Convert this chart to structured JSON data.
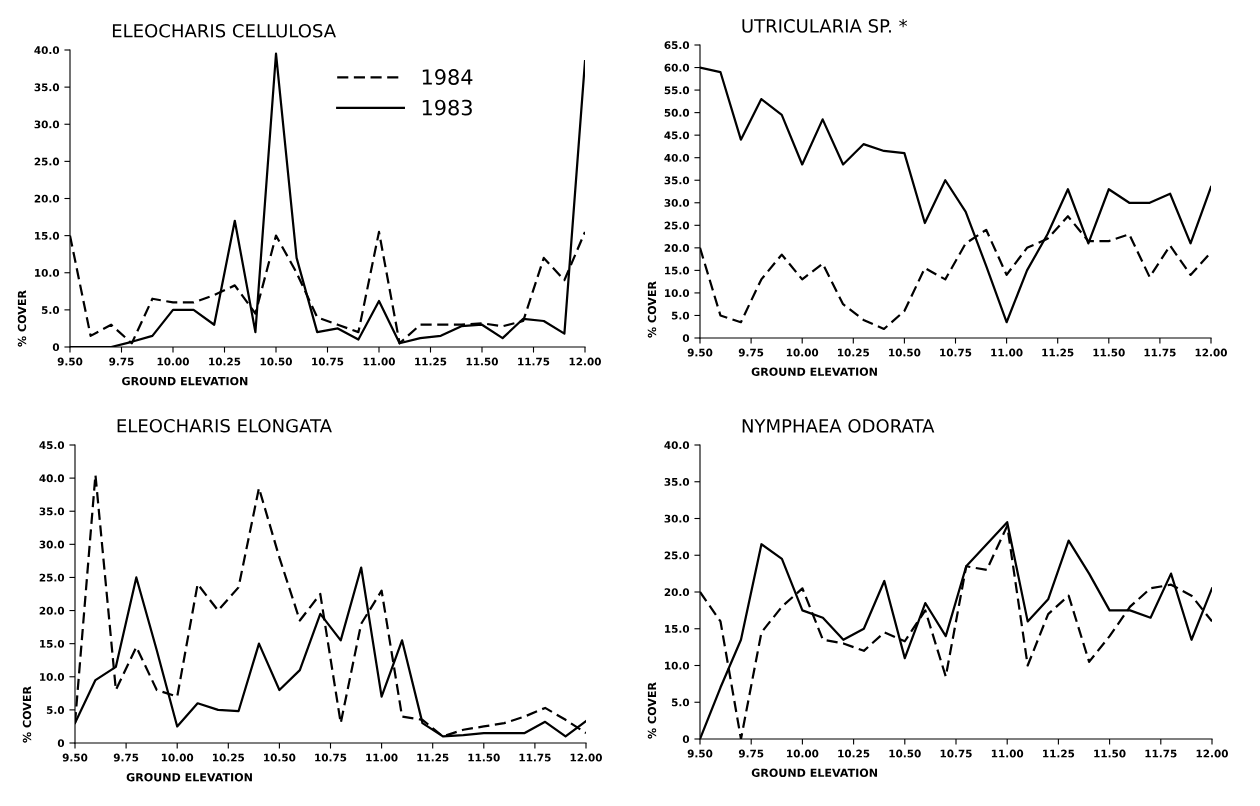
{
  "chart_data": [
    {
      "type": "line",
      "title": "ELEOCHARIS CELLULOSA",
      "xlabel": "GROUND ELEVATION",
      "ylabel": "% COVER",
      "legend": "top right",
      "grid": false,
      "x": [
        9.5,
        9.6,
        9.7,
        9.8,
        9.9,
        10.0,
        10.1,
        10.2,
        10.3,
        10.4,
        10.5,
        10.6,
        10.7,
        10.8,
        10.9,
        11.0,
        11.1,
        11.2,
        11.3,
        11.4,
        11.5,
        11.6,
        11.7,
        11.8,
        11.9,
        12.0
      ],
      "xlim": [
        9.5,
        12.0
      ],
      "xticks": [
        {
          "value": 9.5,
          "label": "9.50"
        },
        {
          "value": 9.75,
          "label": "9.75"
        },
        {
          "value": 10.0,
          "label": "10.00"
        },
        {
          "value": 10.25,
          "label": "10.25"
        },
        {
          "value": 10.5,
          "label": "10.50"
        },
        {
          "value": 10.75,
          "label": "10.75"
        },
        {
          "value": 11.0,
          "label": "11.00"
        },
        {
          "value": 11.25,
          "label": "11.25"
        },
        {
          "value": 11.5,
          "label": "11.50"
        },
        {
          "value": 11.75,
          "label": "11.75"
        },
        {
          "value": 12.0,
          "label": "12.00"
        }
      ],
      "ylim": [
        0,
        40
      ],
      "yticks": [
        0,
        {
          "value": 5,
          "label": "5.0"
        },
        {
          "value": 10,
          "label": "10.0"
        },
        {
          "value": 15,
          "label": "15.0"
        },
        {
          "value": 20,
          "label": "20.0"
        },
        {
          "value": 25,
          "label": "25.0"
        },
        {
          "value": 30,
          "label": "30.0"
        },
        {
          "value": 35,
          "label": "35.0"
        },
        {
          "value": 40,
          "label": "40.0"
        }
      ],
      "series": [
        {
          "name": "1984",
          "color": "#000000",
          "line_style": "dashed",
          "values": [
            15,
            1.5,
            3,
            0.5,
            6.5,
            6,
            6,
            7,
            8.3,
            4.5,
            15,
            10,
            4,
            3,
            2,
            15.5,
            0.5,
            3,
            3,
            3,
            3.2,
            2.8,
            3.5,
            12,
            9,
            15.5
          ]
        },
        {
          "name": "1983",
          "color": "#000000",
          "line_style": "solid",
          "values": [
            0,
            0,
            0,
            0.7,
            1.5,
            5,
            5,
            3,
            17,
            2,
            39.5,
            12,
            2,
            2.5,
            1,
            6.2,
            0.5,
            1.2,
            1.5,
            2.8,
            3,
            1.2,
            3.8,
            3.5,
            1.8,
            38.5
          ]
        }
      ]
    },
    {
      "type": "line",
      "title": "UTRICULARIA SP. *",
      "xlabel": "GROUND ELEVATION",
      "ylabel": "% COVER",
      "grid": false,
      "x": [
        9.5,
        9.6,
        9.7,
        9.8,
        9.9,
        10.0,
        10.1,
        10.2,
        10.3,
        10.4,
        10.5,
        10.6,
        10.7,
        10.8,
        10.9,
        11.0,
        11.1,
        11.2,
        11.3,
        11.4,
        11.5,
        11.6,
        11.7,
        11.8,
        11.9,
        12.0
      ],
      "xlim": [
        9.5,
        12.0
      ],
      "xticks": [
        {
          "value": 9.5,
          "label": "9.50"
        },
        {
          "value": 9.75,
          "label": "9.75"
        },
        {
          "value": 10.0,
          "label": "10.00"
        },
        {
          "value": 10.25,
          "label": "10.25"
        },
        {
          "value": 10.5,
          "label": "10.50"
        },
        {
          "value": 10.75,
          "label": "10.75"
        },
        {
          "value": 11.0,
          "label": "11.00"
        },
        {
          "value": 11.25,
          "label": "11.25"
        },
        {
          "value": 11.5,
          "label": "11.50"
        },
        {
          "value": 11.75,
          "label": "11.75"
        },
        {
          "value": 12.0,
          "label": "12.00"
        }
      ],
      "ylim": [
        0,
        65
      ],
      "yticks": [
        0,
        {
          "value": 5,
          "label": "5.0"
        },
        {
          "value": 10,
          "label": "10.0"
        },
        {
          "value": 15,
          "label": "15.0"
        },
        {
          "value": 20,
          "label": "20.0"
        },
        {
          "value": 25,
          "label": "25.0"
        },
        {
          "value": 30,
          "label": "30.0"
        },
        {
          "value": 35,
          "label": "35.0"
        },
        {
          "value": 40,
          "label": "40.0"
        },
        {
          "value": 45,
          "label": "45.0"
        },
        {
          "value": 50,
          "label": "50.0"
        },
        {
          "value": 55,
          "label": "55.0"
        },
        {
          "value": 60,
          "label": "60.0"
        },
        {
          "value": 65,
          "label": "65.0"
        }
      ],
      "series": [
        {
          "color": "#000000",
          "line_style": "dashed",
          "values": [
            20,
            5,
            3.5,
            13,
            18.5,
            13,
            16.5,
            7.5,
            4,
            2,
            6,
            15.5,
            13,
            21,
            24,
            14,
            20,
            22,
            27,
            21.5,
            21.5,
            23,
            13.5,
            20.5,
            14,
            19
          ]
        },
        {
          "color": "#000000",
          "line_style": "solid",
          "values": [
            60,
            59,
            44,
            53,
            49.5,
            38.5,
            48.5,
            38.5,
            43,
            41.5,
            41,
            25.5,
            35,
            28,
            16,
            3.5,
            15,
            23,
            33,
            21,
            33,
            30,
            30,
            32,
            21,
            33.5
          ]
        }
      ]
    },
    {
      "type": "line",
      "title": "ELEOCHARIS ELONGATA",
      "xlabel": "GROUND ELEVATION",
      "ylabel": "% COVER",
      "grid": false,
      "x": [
        9.5,
        9.6,
        9.7,
        9.8,
        9.9,
        10.0,
        10.1,
        10.2,
        10.3,
        10.4,
        10.5,
        10.6,
        10.7,
        10.8,
        10.9,
        11.0,
        11.1,
        11.2,
        11.3,
        11.4,
        11.5,
        11.6,
        11.7,
        11.8,
        11.9,
        12.0
      ],
      "xlim": [
        9.5,
        12.0
      ],
      "xticks": [
        {
          "value": 9.5,
          "label": "9.50"
        },
        {
          "value": 9.75,
          "label": "9.75"
        },
        {
          "value": 10.0,
          "label": "10.00"
        },
        {
          "value": 10.25,
          "label": "10.25"
        },
        {
          "value": 10.5,
          "label": "10.50"
        },
        {
          "value": 10.75,
          "label": "10.75"
        },
        {
          "value": 11.0,
          "label": "11.00"
        },
        {
          "value": 11.25,
          "label": "11.25"
        },
        {
          "value": 11.5,
          "label": "11.50"
        },
        {
          "value": 11.75,
          "label": "11.75"
        },
        {
          "value": 12.0,
          "label": "12.00"
        }
      ],
      "ylim": [
        0,
        45
      ],
      "yticks": [
        0,
        {
          "value": 5,
          "label": "5.0"
        },
        {
          "value": 10,
          "label": "10.0"
        },
        {
          "value": 15,
          "label": "15.0"
        },
        {
          "value": 20,
          "label": "20.0"
        },
        {
          "value": 25,
          "label": "25.0"
        },
        {
          "value": 30,
          "label": "30.0"
        },
        {
          "value": 35,
          "label": "35.0"
        },
        {
          "value": 40,
          "label": "40.0"
        },
        {
          "value": 45,
          "label": "45.0"
        }
      ],
      "series": [
        {
          "color": "#000000",
          "line_style": "dashed",
          "values": [
            3,
            40.5,
            8,
            14.5,
            8,
            7,
            24,
            20,
            23.5,
            38.5,
            28,
            18.5,
            22.5,
            3,
            18,
            23,
            4,
            3.5,
            1,
            2,
            2.5,
            3,
            4,
            5.3,
            3.5,
            1.5
          ]
        },
        {
          "color": "#000000",
          "line_style": "solid",
          "values": [
            3,
            9.5,
            11.5,
            25,
            14,
            2.5,
            6,
            5,
            4.8,
            15,
            8,
            11,
            19.5,
            15.5,
            26.5,
            7,
            15.5,
            3,
            1,
            1.2,
            1.5,
            1.5,
            1.5,
            3.2,
            1,
            3.3
          ]
        }
      ]
    },
    {
      "type": "line",
      "title": "NYMPHAEA ODORATA",
      "xlabel": "GROUND ELEVATION",
      "ylabel": "% COVER",
      "grid": false,
      "x": [
        9.5,
        9.6,
        9.7,
        9.8,
        9.9,
        10.0,
        10.1,
        10.2,
        10.3,
        10.4,
        10.5,
        10.6,
        10.7,
        10.8,
        10.9,
        11.0,
        11.1,
        11.2,
        11.3,
        11.4,
        11.5,
        11.6,
        11.7,
        11.8,
        11.9,
        12.0
      ],
      "xlim": [
        9.5,
        12.0
      ],
      "xticks": [
        {
          "value": 9.5,
          "label": "9.50"
        },
        {
          "value": 9.75,
          "label": "9.75"
        },
        {
          "value": 10.0,
          "label": "10.00"
        },
        {
          "value": 10.25,
          "label": "10.25"
        },
        {
          "value": 10.5,
          "label": "10.50"
        },
        {
          "value": 10.75,
          "label": "10.75"
        },
        {
          "value": 11.0,
          "label": "11.00"
        },
        {
          "value": 11.25,
          "label": "11.25"
        },
        {
          "value": 11.5,
          "label": "11.50"
        },
        {
          "value": 11.75,
          "label": "11.75"
        },
        {
          "value": 12.0,
          "label": "12.00"
        }
      ],
      "ylim": [
        0,
        40
      ],
      "yticks": [
        0,
        {
          "value": 5,
          "label": "5.0"
        },
        {
          "value": 10,
          "label": "10.0"
        },
        {
          "value": 15,
          "label": "15.0"
        },
        {
          "value": 20,
          "label": "20.0"
        },
        {
          "value": 25,
          "label": "25.0"
        },
        {
          "value": 30,
          "label": "30.0"
        },
        {
          "value": 35,
          "label": "35.0"
        },
        {
          "value": 40,
          "label": "40.0"
        }
      ],
      "series": [
        {
          "color": "#000000",
          "line_style": "dashed",
          "values": [
            20,
            16,
            0,
            14.5,
            18,
            20.5,
            13.5,
            13,
            12,
            14.5,
            13.3,
            17.5,
            8.5,
            23.5,
            23,
            29,
            10,
            17,
            19.5,
            10.5,
            14,
            18,
            20.5,
            21,
            19.5,
            16
          ]
        },
        {
          "color": "#000000",
          "line_style": "solid",
          "values": [
            0,
            7,
            13.5,
            26.5,
            24.5,
            17.5,
            16.5,
            13.5,
            15,
            21.5,
            11,
            18.5,
            14,
            23.5,
            26.5,
            29.5,
            16,
            19,
            27,
            22.5,
            17.5,
            17.5,
            16.5,
            22.5,
            13.5,
            20.5
          ]
        }
      ]
    }
  ]
}
